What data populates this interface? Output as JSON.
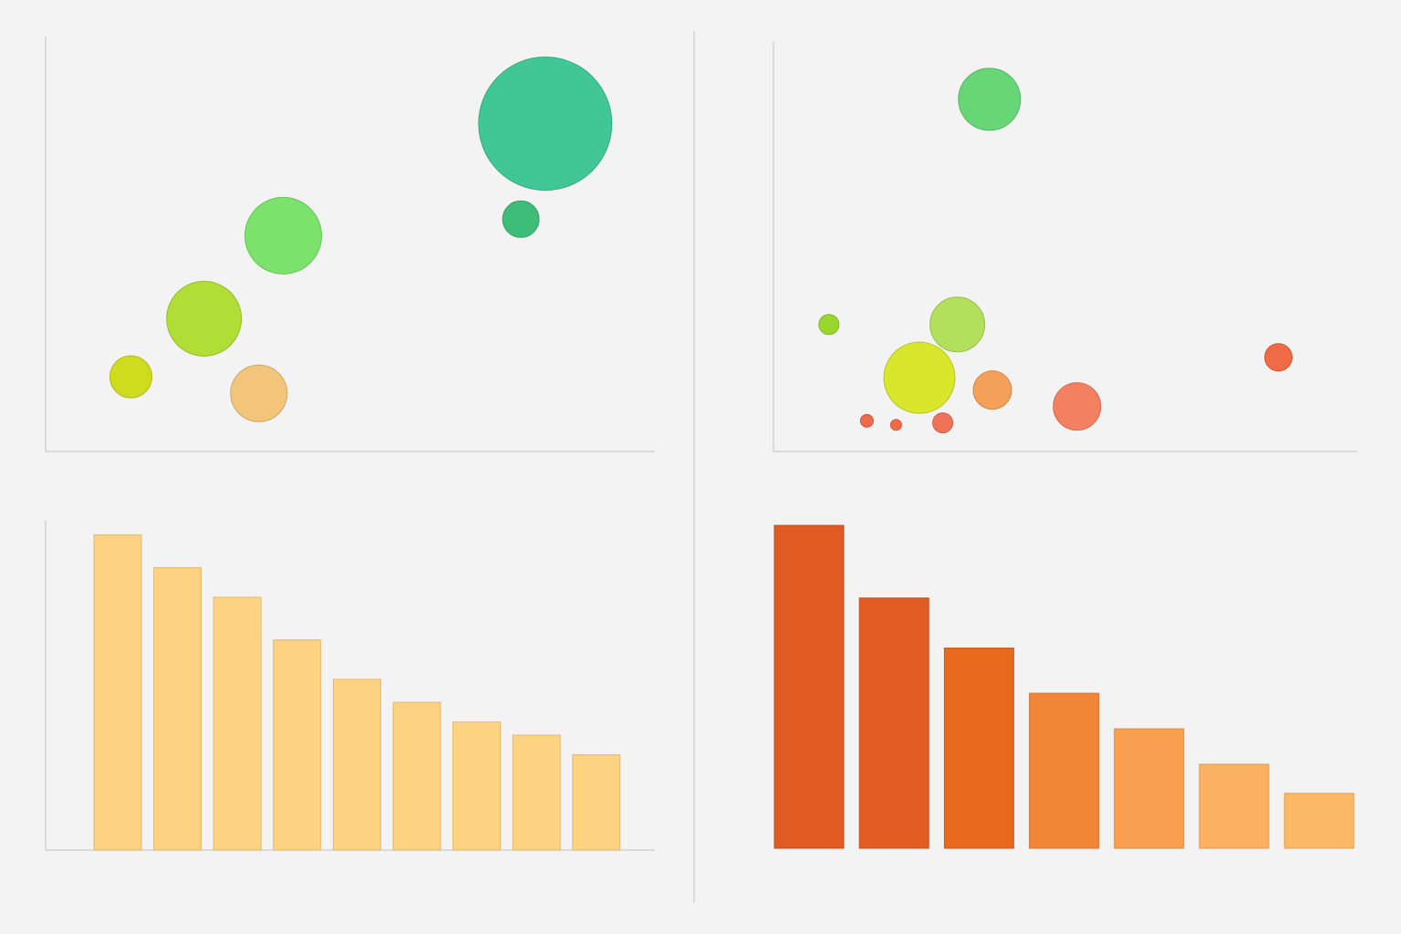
{
  "chart_data": [
    {
      "type": "scatter",
      "bubble": true,
      "title": "",
      "xlabel": "",
      "ylabel": "",
      "xlim": [
        0,
        100
      ],
      "ylim": [
        0,
        100
      ],
      "grid": false,
      "points": [
        {
          "x": 14,
          "y": 18,
          "size": 23,
          "color": "#cfdc1e"
        },
        {
          "x": 26,
          "y": 32,
          "size": 41,
          "color": "#b0dd36"
        },
        {
          "x": 35,
          "y": 14,
          "size": 31,
          "color": "#f2c57a"
        },
        {
          "x": 39,
          "y": 52,
          "size": 42,
          "color": "#7be36c"
        },
        {
          "x": 78,
          "y": 56,
          "size": 20,
          "color": "#3dbd78"
        },
        {
          "x": 82,
          "y": 79,
          "size": 73,
          "color": "#40c795"
        }
      ]
    },
    {
      "type": "scatter",
      "bubble": true,
      "title": "",
      "xlabel": "",
      "ylabel": "",
      "xlim": [
        0,
        100
      ],
      "ylim": [
        0,
        100
      ],
      "grid": false,
      "points": [
        {
          "x": 9.5,
          "y": 31,
          "size": 11,
          "color": "#9ad72e"
        },
        {
          "x": 16,
          "y": 7.5,
          "size": 7,
          "color": "#ef6a4a"
        },
        {
          "x": 21,
          "y": 6.5,
          "size": 6,
          "color": "#ef6a4a"
        },
        {
          "x": 25,
          "y": 18,
          "size": 39,
          "color": "#d8e62c"
        },
        {
          "x": 29,
          "y": 7,
          "size": 11,
          "color": "#f07258"
        },
        {
          "x": 31.5,
          "y": 31,
          "size": 30,
          "color": "#b2e05c"
        },
        {
          "x": 37.5,
          "y": 15,
          "size": 21,
          "color": "#f4a05a"
        },
        {
          "x": 37,
          "y": 86,
          "size": 34,
          "color": "#66d676"
        },
        {
          "x": 52,
          "y": 11,
          "size": 26,
          "color": "#f38061"
        },
        {
          "x": 86.5,
          "y": 23,
          "size": 15,
          "color": "#f06a45"
        }
      ]
    },
    {
      "type": "bar",
      "title": "",
      "xlabel": "",
      "ylabel": "",
      "categories": [
        "",
        "",
        "",
        "",
        "",
        "",
        "",
        "",
        ""
      ],
      "values": [
        96,
        86,
        77,
        64,
        52,
        45,
        39,
        35,
        29
      ],
      "ylim": [
        0,
        100
      ],
      "color": "#fdd382",
      "grid": false
    },
    {
      "type": "bar",
      "title": "",
      "xlabel": "",
      "ylabel": "",
      "categories": [
        "",
        "",
        "",
        "",
        "",
        "",
        ""
      ],
      "values": [
        100,
        77.5,
        62,
        48,
        37,
        26,
        17
      ],
      "ylim": [
        0,
        100
      ],
      "colors": [
        "#e05a23",
        "#e25c24",
        "#e8681e",
        "#f28638",
        "#f89f4f",
        "#fbb162",
        "#fdb866"
      ],
      "grid": false
    }
  ]
}
